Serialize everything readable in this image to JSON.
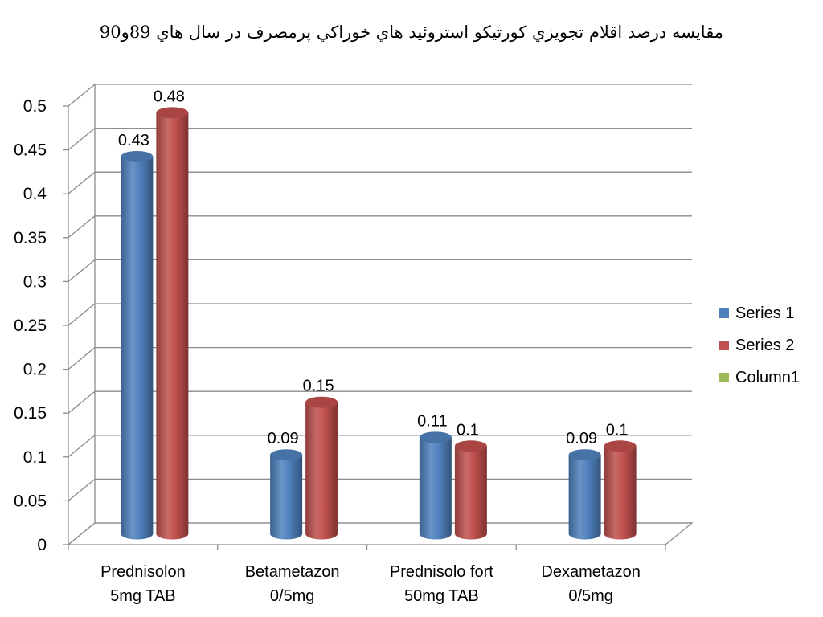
{
  "chart_data": {
    "type": "bar",
    "title": "مقايسه درصد اقلام تجويزي كورتيكو استروئيد هاي خوراكي پرمصرف در سال هاي 89و90",
    "categories": [
      [
        "Prednisolon",
        "5mg TAB"
      ],
      [
        "Betametazon",
        "0/5mg"
      ],
      [
        "Prednisolo fort",
        "50mg TAB"
      ],
      [
        "Dexametazon",
        "0/5mg"
      ]
    ],
    "series": [
      {
        "name": "Series 1",
        "color": "#4F81BD",
        "values": [
          0.43,
          0.09,
          0.11,
          0.09
        ],
        "labels": [
          "0.43",
          "0.09",
          "0.11",
          "0.09"
        ]
      },
      {
        "name": "Series 2",
        "color": "#C0504D",
        "values": [
          0.48,
          0.15,
          0.1,
          0.1
        ],
        "labels": [
          "0.48",
          "0.15",
          "0.1",
          "0.1"
        ]
      },
      {
        "name": "Column1",
        "color": "#9BBB59",
        "values": [
          null,
          null,
          null,
          null
        ],
        "labels": []
      }
    ],
    "ylim": [
      0,
      0.5
    ],
    "yticks": [
      "0",
      "0.05",
      "0.1",
      "0.15",
      "0.2",
      "0.25",
      "0.3",
      "0.35",
      "0.4",
      "0.45",
      "0.5"
    ],
    "grid": true,
    "legend": "right",
    "style": "3d-cylinder"
  }
}
